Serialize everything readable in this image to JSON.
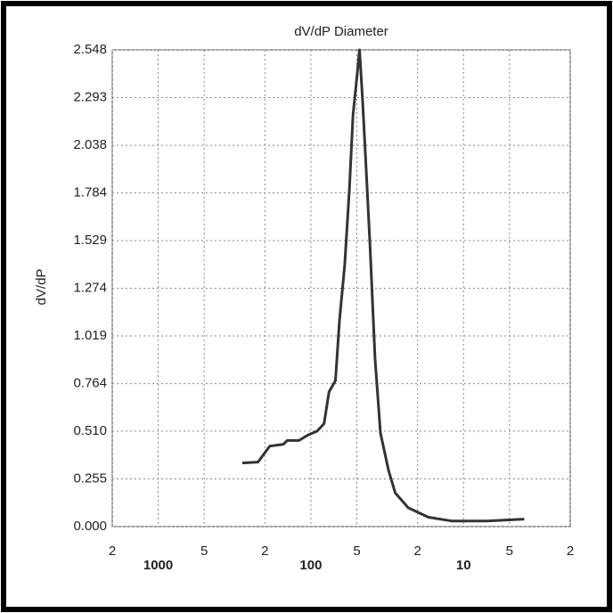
{
  "chart_data": {
    "type": "line",
    "title": "dV/dP Diameter",
    "y_label": "dV/dP",
    "x_scale": "log",
    "grid": true,
    "xlim": [
      2000,
      2
    ],
    "xticks": [
      {
        "value": 2000,
        "label": "2"
      },
      1000,
      {
        "value": 500,
        "label": "5"
      },
      {
        "value": 200,
        "label": "2"
      },
      100,
      {
        "value": 50,
        "label": "5"
      },
      {
        "value": 20,
        "label": "2"
      },
      10,
      {
        "value": 5,
        "label": "5"
      },
      {
        "value": 2,
        "label": "2"
      }
    ],
    "ylim": [
      0,
      2.548
    ],
    "yticks": [
      {
        "value": 0,
        "label": "0.000"
      },
      0.255,
      {
        "value": 0.51,
        "label": "0.510"
      },
      0.764,
      1.019,
      1.274,
      1.529,
      1.784,
      2.038,
      2.293,
      2.548
    ],
    "series": [
      {
        "color": "#333333",
        "x": [
          281,
          222,
          186,
          151,
          143,
          120,
          104,
          91,
          82,
          76,
          69,
          65,
          60,
          56,
          53,
          50,
          48,
          46,
          44,
          41,
          38,
          35,
          31,
          28,
          23,
          17,
          12,
          7,
          4
        ],
        "values": [
          0.34,
          0.345,
          0.43,
          0.44,
          0.46,
          0.46,
          0.49,
          0.51,
          0.55,
          0.72,
          0.78,
          1.1,
          1.4,
          1.8,
          2.2,
          2.4,
          2.548,
          2.3,
          2.0,
          1.5,
          0.9,
          0.5,
          0.3,
          0.18,
          0.1,
          0.05,
          0.03,
          0.03,
          0.04
        ]
      }
    ]
  }
}
